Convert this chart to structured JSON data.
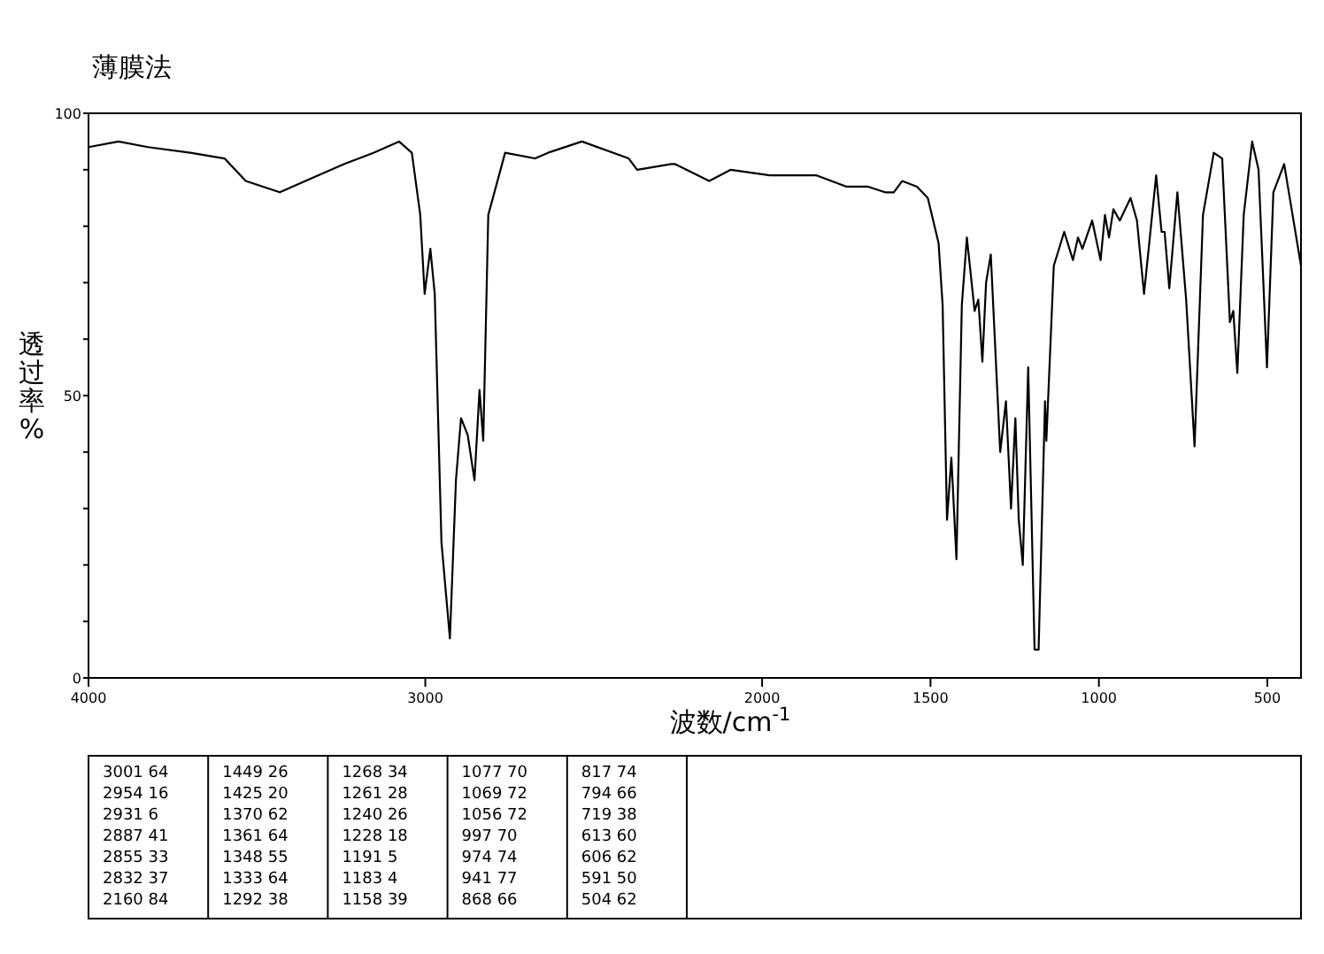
{
  "chart_data": {
    "type": "line",
    "title": "薄膜法",
    "xlabel": "波数/cm$^{-1}$",
    "ylabel": "透过率%",
    "xlim": [
      4000,
      400
    ],
    "ylim": [
      0,
      100
    ],
    "xticks": [
      4000,
      3000,
      2000,
      1500,
      1000,
      500
    ],
    "yticks": [
      0,
      {
        "value": 10,
        "label": null
      },
      {
        "value": 20,
        "label": null
      },
      {
        "value": 30,
        "label": null
      },
      {
        "value": 40,
        "label": null
      },
      50,
      {
        "value": 60,
        "label": null
      },
      {
        "value": 70,
        "label": null
      },
      {
        "value": 80,
        "label": null
      },
      {
        "value": 90,
        "label": null
      },
      100
    ],
    "grid": false,
    "marker": "none",
    "line_style": "solid",
    "series": [
      {
        "color": "#000000",
        "x": [
          4000,
          3911,
          3823,
          3697,
          3596,
          3533,
          3432,
          3356,
          3242,
          3154,
          3078,
          3040,
          3015,
          3002,
          2985,
          2972,
          2952,
          2927,
          2909,
          2894,
          2874,
          2854,
          2839,
          2828,
          2813,
          2763,
          2674,
          2636,
          2535,
          2396,
          2371,
          2270,
          2258,
          2157,
          2093,
          1977,
          1838,
          1749,
          1685,
          1635,
          1609,
          1584,
          1540,
          1508,
          1476,
          1464,
          1451,
          1438,
          1423,
          1407,
          1392,
          1369,
          1358,
          1346,
          1335,
          1321,
          1293,
          1276,
          1261,
          1248,
          1238,
          1226,
          1210,
          1191,
          1179,
          1160,
          1156,
          1134,
          1103,
          1077,
          1062,
          1049,
          1020,
          995,
          982,
          970,
          957,
          938,
          906,
          887,
          866,
          830,
          814,
          805,
          791,
          767,
          741,
          716,
          691,
          659,
          634,
          611,
          601,
          589,
          570,
          545,
          526,
          501,
          482,
          450,
          425,
          400
        ],
        "values": [
          94,
          95,
          94,
          93,
          92,
          88,
          86,
          88,
          91,
          93,
          95,
          93,
          82,
          68,
          76,
          68,
          24,
          7,
          35,
          46,
          43,
          35,
          51,
          42,
          82,
          93,
          92,
          93,
          95,
          92,
          90,
          91,
          91,
          88,
          90,
          89,
          89,
          87,
          87,
          86,
          86,
          88,
          87,
          85,
          77,
          66,
          28,
          39,
          21,
          66,
          78,
          65,
          67,
          56,
          70,
          75,
          40,
          49,
          30,
          46,
          28,
          20,
          55,
          5,
          5,
          49,
          42,
          73,
          79,
          74,
          78,
          76,
          81,
          74,
          82,
          78,
          83,
          81,
          85,
          81,
          68,
          89,
          79,
          79,
          69,
          86,
          67,
          41,
          82,
          93,
          92,
          63,
          65,
          54,
          82,
          95,
          90,
          55,
          86,
          91,
          82,
          73
        ]
      }
    ],
    "annotations": [
      "3001 64",
      "2954 16",
      "2931 6",
      "2887 41",
      "2855 33",
      "2832 37",
      "2160 84",
      "1449 26",
      "1425 20",
      "1370 62",
      "1361 64",
      "1348 55",
      "1333 64",
      "1292 38",
      "1268 34",
      "1261 28",
      "1240 26",
      "1228 18",
      "1191 5",
      "1183 4",
      "1158 39",
      "1077 70",
      "1069 72",
      "1056 72",
      "997 70",
      "974 74",
      "941 77",
      "868 66",
      "817 74",
      "794 66",
      "719 38",
      "613 60",
      "606 62",
      "591 50",
      "504 62"
    ]
  }
}
